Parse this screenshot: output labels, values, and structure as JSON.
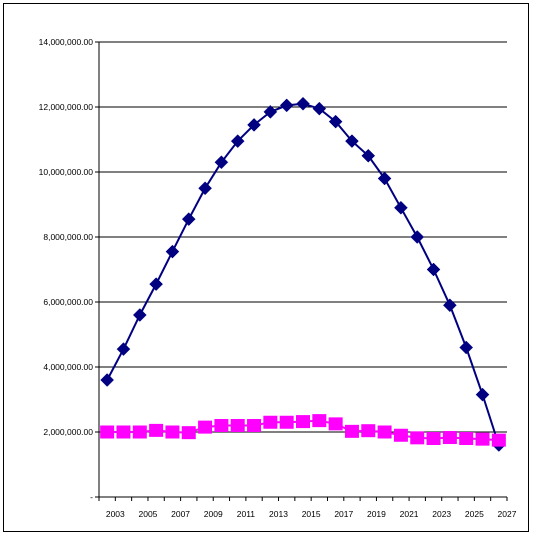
{
  "chart_data": {
    "type": "line",
    "title": "",
    "xlabel": "",
    "ylabel": "",
    "xlim": [
      2002,
      2027
    ],
    "ylim": [
      0,
      14000000
    ],
    "x_ticks": [
      2003,
      2005,
      2007,
      2009,
      2011,
      2013,
      2015,
      2017,
      2019,
      2021,
      2023,
      2025,
      2027
    ],
    "y_ticks": [
      0,
      2000000,
      4000000,
      6000000,
      8000000,
      10000000,
      12000000,
      14000000
    ],
    "y_tick_labels": [
      "-",
      "2,000,000.00",
      "4,000,000.00",
      "6,000,000.00",
      "8,000,000.00",
      "10,000,000.00",
      "12,000,000.00",
      "14,000,000.00"
    ],
    "grid": "horizontal",
    "legend": "none",
    "series": [
      {
        "marker": "diamond",
        "color": "#000080",
        "line": true,
        "x": [
          2002.5,
          2003.5,
          2004.5,
          2005.5,
          2006.5,
          2007.5,
          2008.5,
          2009.5,
          2010.5,
          2011.5,
          2012.5,
          2013.5,
          2014.5,
          2015.5,
          2016.5,
          2017.5,
          2018.5,
          2019.5,
          2020.5,
          2021.5,
          2022.5,
          2023.5,
          2024.5,
          2025.5,
          2026.5
        ],
        "values": [
          3600000,
          4550000,
          5600000,
          6550000,
          7550000,
          8550000,
          9500000,
          10300000,
          10950000,
          11450000,
          11850000,
          12050000,
          12100000,
          11950000,
          11550000,
          10950000,
          10500000,
          9800000,
          8900000,
          8000000,
          7000000,
          5900000,
          4600000,
          3150000,
          1600000
        ]
      },
      {
        "marker": "square",
        "color": "#ff00ff",
        "line": true,
        "x": [
          2002.5,
          2003.5,
          2004.5,
          2005.5,
          2006.5,
          2007.5,
          2008.5,
          2009.5,
          2010.5,
          2011.5,
          2012.5,
          2013.5,
          2014.5,
          2015.5,
          2016.5,
          2017.5,
          2018.5,
          2019.5,
          2020.5,
          2021.5,
          2022.5,
          2023.5,
          2024.5,
          2025.5,
          2026.5
        ],
        "values": [
          2000000,
          2000000,
          2000000,
          2050000,
          2000000,
          1980000,
          2150000,
          2200000,
          2200000,
          2200000,
          2300000,
          2300000,
          2320000,
          2350000,
          2250000,
          2020000,
          2040000,
          2000000,
          1900000,
          1820000,
          1800000,
          1830000,
          1800000,
          1780000,
          1750000
        ]
      }
    ]
  }
}
